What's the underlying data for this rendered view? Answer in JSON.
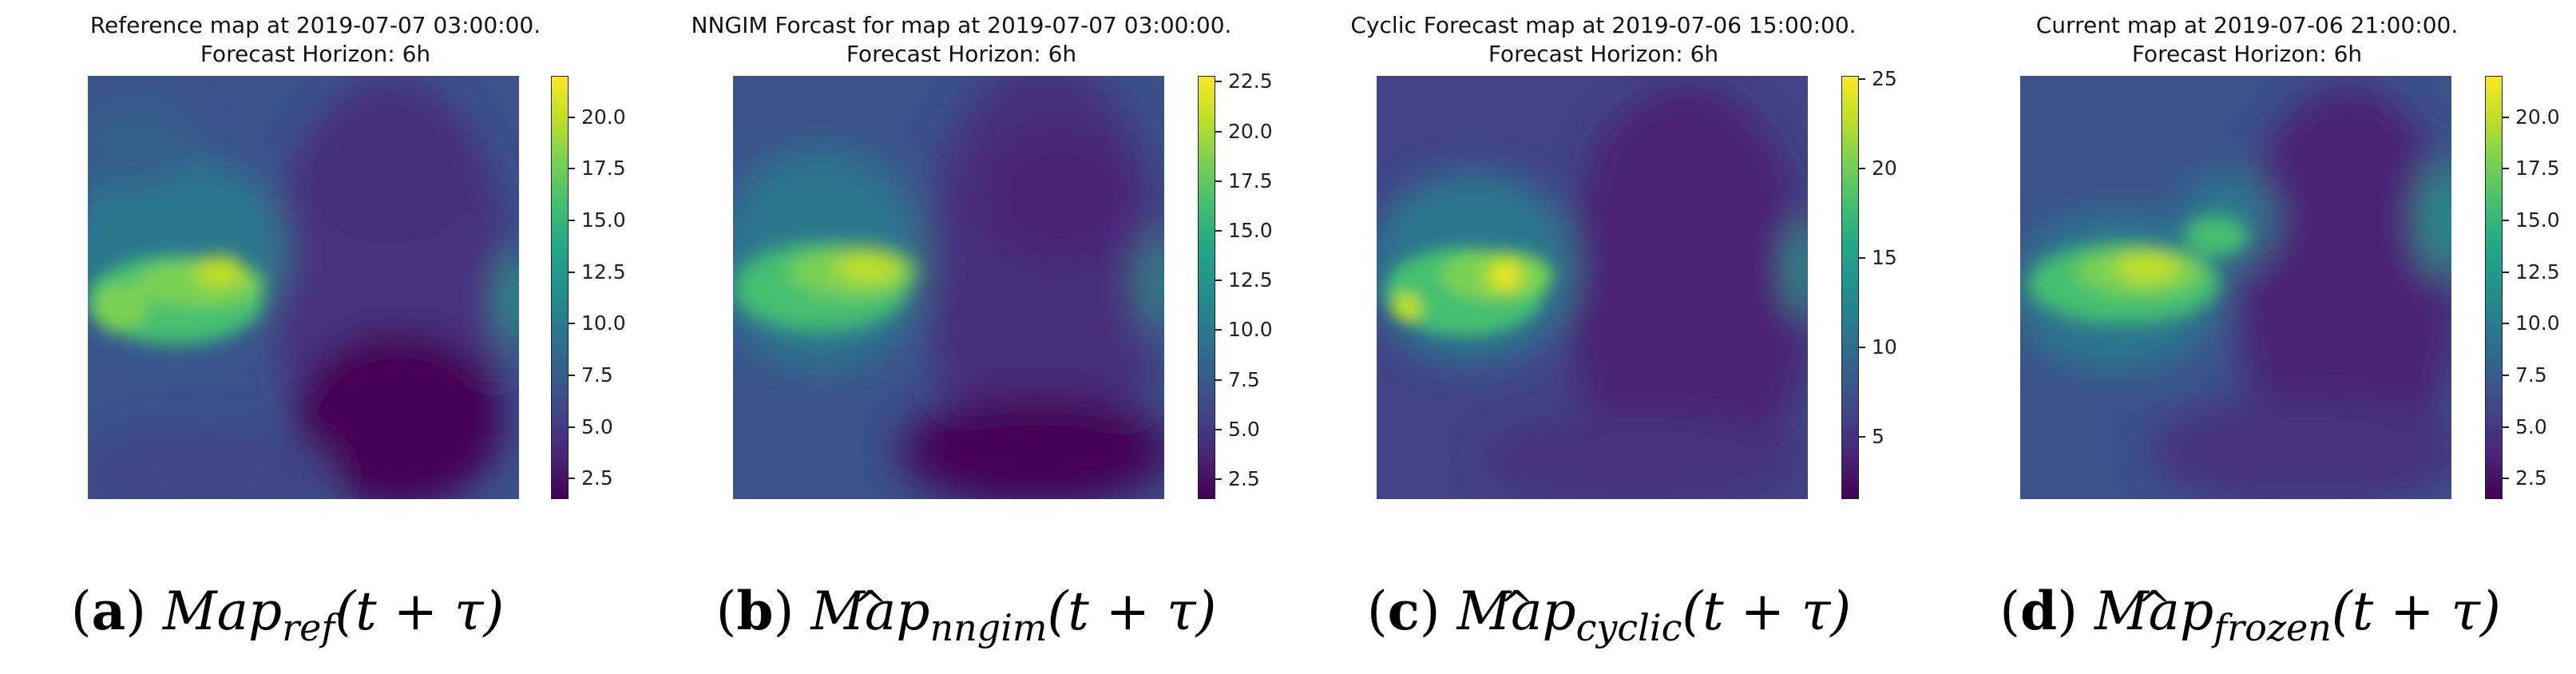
{
  "figure": {
    "panels": [
      {
        "id": "a",
        "title_line1": "Reference map at 2019-07-07 03:00:00.",
        "title_line2": "Forecast Horizon: 6h",
        "caption": {
          "label": "a",
          "symbol": "Map",
          "subscript": "ref",
          "hat": false,
          "argument": "(t + τ)"
        },
        "colorbar": {
          "min": 1.5,
          "max": 22.0,
          "ticks": [
            "2.5",
            "5.0",
            "7.5",
            "10.0",
            "12.5",
            "15.0",
            "17.5",
            "20.0"
          ],
          "tick_values": [
            2.5,
            5.0,
            7.5,
            10.0,
            12.5,
            15.0,
            17.5,
            20.0
          ]
        }
      },
      {
        "id": "b",
        "title_line1": "NNGIM Forcast for map at 2019-07-07 03:00:00.",
        "title_line2": "Forecast Horizon: 6h",
        "caption": {
          "label": "b",
          "symbol": "Map",
          "subscript": "nngim",
          "hat": true,
          "argument": "(t + τ)"
        },
        "colorbar": {
          "min": 1.5,
          "max": 22.8,
          "ticks": [
            "2.5",
            "5.0",
            "7.5",
            "10.0",
            "12.5",
            "15.0",
            "17.5",
            "20.0",
            "22.5"
          ],
          "tick_values": [
            2.5,
            5.0,
            7.5,
            10.0,
            12.5,
            15.0,
            17.5,
            20.0,
            22.5
          ]
        }
      },
      {
        "id": "c",
        "title_line1": "Cyclic Forecast map at 2019-07-06 15:00:00.",
        "title_line2": "Forecast Horizon: 6h",
        "caption": {
          "label": "c",
          "symbol": "Map",
          "subscript": "cyclic",
          "hat": true,
          "argument": "(t + τ)"
        },
        "colorbar": {
          "min": 1.5,
          "max": 25.2,
          "ticks": [
            "5",
            "10",
            "15",
            "20",
            "25"
          ],
          "tick_values": [
            5,
            10,
            15,
            20,
            25
          ]
        }
      },
      {
        "id": "d",
        "title_line1": "Current map at 2019-07-06 21:00:00.",
        "title_line2": "Forecast Horizon: 6h",
        "caption": {
          "label": "d",
          "symbol": "Map",
          "subscript": "frozen",
          "hat": true,
          "argument": "(t + τ)"
        },
        "colorbar": {
          "min": 1.5,
          "max": 22.0,
          "ticks": [
            "2.5",
            "5.0",
            "7.5",
            "10.0",
            "12.5",
            "15.0",
            "17.5",
            "20.0"
          ],
          "tick_values": [
            2.5,
            5.0,
            7.5,
            10.0,
            12.5,
            15.0,
            17.5,
            20.0
          ]
        }
      }
    ]
  },
  "chart_data": [
    {
      "type": "heatmap",
      "title": "Reference map at 2019-07-07 03:00:00. Forecast Horizon: 6h",
      "colormap": "viridis",
      "vmin": 1.5,
      "vmax": 22.0,
      "colorbar_ticks": [
        2.5,
        5.0,
        7.5,
        10.0,
        12.5,
        15.0,
        17.5,
        20.0
      ],
      "hotspot_peak_value": 21.0,
      "xlabel": "",
      "ylabel": ""
    },
    {
      "type": "heatmap",
      "title": "NNGIM Forcast for map at 2019-07-07 03:00:00. Forecast Horizon: 6h",
      "colormap": "viridis",
      "vmin": 1.5,
      "vmax": 22.8,
      "colorbar_ticks": [
        2.5,
        5.0,
        7.5,
        10.0,
        12.5,
        15.0,
        17.5,
        20.0,
        22.5
      ],
      "hotspot_peak_value": 21.5,
      "xlabel": "",
      "ylabel": ""
    },
    {
      "type": "heatmap",
      "title": "Cyclic Forecast map at 2019-07-06 15:00:00. Forecast Horizon: 6h",
      "colormap": "viridis",
      "vmin": 1.5,
      "vmax": 25.2,
      "colorbar_ticks": [
        5,
        10,
        15,
        20,
        25
      ],
      "hotspot_peak_value": 24.5,
      "xlabel": "",
      "ylabel": ""
    },
    {
      "type": "heatmap",
      "title": "Current map at 2019-07-06 21:00:00. Forecast Horizon: 6h",
      "colormap": "viridis",
      "vmin": 1.5,
      "vmax": 22.0,
      "colorbar_ticks": [
        2.5,
        5.0,
        7.5,
        10.0,
        12.5,
        15.0,
        17.5,
        20.0
      ],
      "hotspot_peak_value": 21.0,
      "xlabel": "",
      "ylabel": ""
    }
  ]
}
